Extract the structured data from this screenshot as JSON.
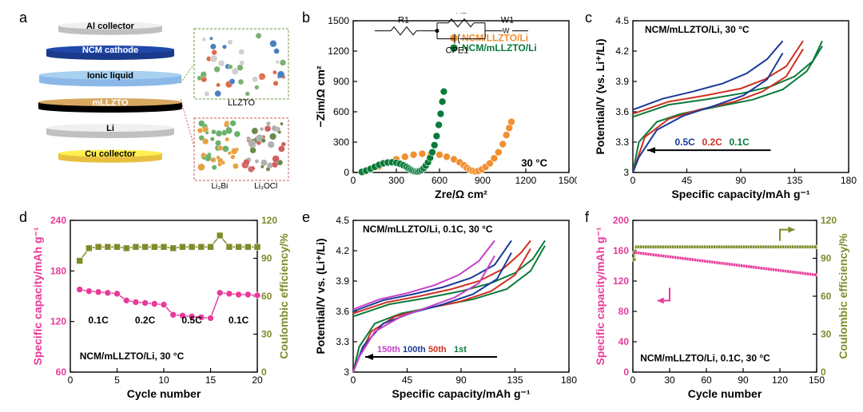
{
  "panels": {
    "a": {
      "label": "a"
    },
    "b": {
      "label": "b"
    },
    "c": {
      "label": "c"
    },
    "d": {
      "label": "d"
    },
    "e": {
      "label": "e"
    },
    "f": {
      "label": "f"
    }
  },
  "panel_a": {
    "layers": [
      {
        "label": "Al collector",
        "color": "#c0c0c0",
        "width": 130,
        "height": 18,
        "text_color": "#000000"
      },
      {
        "label": "NCM cathode",
        "color": "#1a3a8a",
        "width": 160,
        "height": 20,
        "text_color": "#ffffff"
      },
      {
        "label": "Ionic liquid",
        "color": "#8bb8e8",
        "width": 178,
        "height": 22,
        "text_color": "#000000"
      },
      {
        "label": "mLLZTO",
        "color": "#000000",
        "width": 180,
        "height": 20,
        "text_color": "#ffffff",
        "top_color": "#d8a860"
      },
      {
        "label": "Li",
        "color": "#c0c0c0",
        "width": 160,
        "height": 20,
        "text_color": "#000000"
      },
      {
        "label": "Cu collector",
        "color": "#e8c040",
        "width": 130,
        "height": 18,
        "text_color": "#000000"
      }
    ],
    "inset_labels": [
      "LLZTO",
      "Li₃Bi",
      "Li₃OCl"
    ],
    "inset_border_top": "#6a9a3a",
    "inset_border_bottom": "#c85a5a"
  },
  "panel_b": {
    "type": "scatter",
    "xlabel": "Zre/Ω cm²",
    "ylabel": "−Zim/Ω cm²",
    "xlim": [
      0,
      1500
    ],
    "xtick_step": 300,
    "ylim": [
      0,
      1500
    ],
    "ytick_step": 300,
    "annotation": "30 °C",
    "label_fontsize": 14,
    "tick_fontsize": 12,
    "circuit_labels": [
      "R1",
      "R2",
      "W1",
      "CPE1"
    ],
    "series": [
      {
        "name": "NCM/LLZTO/Li",
        "color": "#f09030",
        "marker_size": 4.5,
        "points": [
          [
            80,
            10
          ],
          [
            120,
            30
          ],
          [
            180,
            60
          ],
          [
            240,
            95
          ],
          [
            300,
            130
          ],
          [
            360,
            155
          ],
          [
            420,
            175
          ],
          [
            480,
            185
          ],
          [
            540,
            185
          ],
          [
            600,
            175
          ],
          [
            650,
            155
          ],
          [
            700,
            130
          ],
          [
            740,
            100
          ],
          [
            770,
            70
          ],
          [
            790,
            45
          ],
          [
            810,
            25
          ],
          [
            830,
            15
          ],
          [
            850,
            10
          ],
          [
            870,
            15
          ],
          [
            895,
            30
          ],
          [
            920,
            55
          ],
          [
            950,
            90
          ],
          [
            980,
            140
          ],
          [
            1010,
            200
          ],
          [
            1040,
            280
          ],
          [
            1065,
            370
          ],
          [
            1085,
            440
          ],
          [
            1100,
            500
          ]
        ]
      },
      {
        "name": "NCM/mLLZTO/Li",
        "color": "#0a7a3a",
        "marker_size": 4.5,
        "points": [
          [
            60,
            5
          ],
          [
            90,
            18
          ],
          [
            120,
            35
          ],
          [
            150,
            55
          ],
          [
            180,
            75
          ],
          [
            210,
            90
          ],
          [
            240,
            98
          ],
          [
            270,
            100
          ],
          [
            300,
            95
          ],
          [
            325,
            85
          ],
          [
            350,
            70
          ],
          [
            370,
            55
          ],
          [
            385,
            40
          ],
          [
            400,
            28
          ],
          [
            412,
            18
          ],
          [
            425,
            12
          ],
          [
            438,
            9
          ],
          [
            450,
            9
          ],
          [
            462,
            14
          ],
          [
            475,
            24
          ],
          [
            490,
            42
          ],
          [
            505,
            68
          ],
          [
            520,
            100
          ],
          [
            535,
            145
          ],
          [
            550,
            200
          ],
          [
            565,
            270
          ],
          [
            580,
            360
          ],
          [
            595,
            470
          ],
          [
            608,
            580
          ],
          [
            620,
            700
          ],
          [
            630,
            800
          ]
        ]
      }
    ]
  },
  "panel_c": {
    "type": "line",
    "xlabel": "Specific capacity/mAh g⁻¹",
    "ylabel": "Potential/V (vs. Li⁺/Li)",
    "title": "NCM/mLLZTO/Li, 30 °C",
    "xlim": [
      0,
      180
    ],
    "xtick_step": 45,
    "ylim": [
      3.0,
      4.5
    ],
    "ytick_step": 0.3,
    "rate_labels": [
      {
        "text": "0.5C",
        "color": "#1a3a9a"
      },
      {
        "text": "0.2C",
        "color": "#d03020"
      },
      {
        "text": "0.1C",
        "color": "#0a7a3a"
      }
    ],
    "series": [
      {
        "name": "0.1C-charge",
        "color": "#0a7a3a",
        "points": [
          [
            0,
            3.55
          ],
          [
            30,
            3.67
          ],
          [
            60,
            3.72
          ],
          [
            90,
            3.78
          ],
          [
            115,
            3.85
          ],
          [
            135,
            3.95
          ],
          [
            150,
            4.1
          ],
          [
            158,
            4.3
          ]
        ]
      },
      {
        "name": "0.1C-discharge",
        "color": "#0a7a3a",
        "points": [
          [
            158,
            4.25
          ],
          [
            145,
            4.0
          ],
          [
            125,
            3.82
          ],
          [
            100,
            3.72
          ],
          [
            70,
            3.65
          ],
          [
            40,
            3.58
          ],
          [
            20,
            3.5
          ],
          [
            5,
            3.3
          ],
          [
            0,
            3.0
          ]
        ]
      },
      {
        "name": "0.2C-charge",
        "color": "#d03020",
        "points": [
          [
            0,
            3.58
          ],
          [
            30,
            3.7
          ],
          [
            60,
            3.76
          ],
          [
            90,
            3.83
          ],
          [
            110,
            3.92
          ],
          [
            128,
            4.05
          ],
          [
            142,
            4.3
          ]
        ]
      },
      {
        "name": "0.2C-discharge",
        "color": "#d03020",
        "points": [
          [
            142,
            4.22
          ],
          [
            128,
            3.95
          ],
          [
            108,
            3.8
          ],
          [
            85,
            3.7
          ],
          [
            55,
            3.62
          ],
          [
            30,
            3.53
          ],
          [
            10,
            3.35
          ],
          [
            0,
            3.0
          ]
        ]
      },
      {
        "name": "0.5C-charge",
        "color": "#1a3a9a",
        "points": [
          [
            0,
            3.62
          ],
          [
            25,
            3.73
          ],
          [
            50,
            3.8
          ],
          [
            75,
            3.88
          ],
          [
            95,
            3.98
          ],
          [
            112,
            4.12
          ],
          [
            125,
            4.3
          ]
        ]
      },
      {
        "name": "0.5C-discharge",
        "color": "#1a3a9a",
        "points": [
          [
            125,
            4.18
          ],
          [
            112,
            3.92
          ],
          [
            92,
            3.76
          ],
          [
            68,
            3.66
          ],
          [
            42,
            3.56
          ],
          [
            20,
            3.42
          ],
          [
            5,
            3.15
          ],
          [
            0,
            3.0
          ]
        ]
      }
    ]
  },
  "panel_d": {
    "type": "scatter-dual",
    "xlabel": "Cycle number",
    "ylabel_left": "Specific capacity/mAh g⁻¹",
    "ylabel_right": "Coulombic efficiency/%",
    "annotation": "NCM/mLLZTO/Li, 30 °C",
    "xlim": [
      0,
      20
    ],
    "xtick_step": 5,
    "ylim_left": [
      60,
      240
    ],
    "ytick_left_step": 60,
    "ylim_right": [
      0,
      120
    ],
    "ytick_right_step": 30,
    "capacity_color": "#e83a9a",
    "efficiency_color": "#808a2a",
    "rate_labels": [
      {
        "text": "0.1C",
        "x": 3
      },
      {
        "text": "0.2C",
        "x": 8
      },
      {
        "text": "0.5C",
        "x": 13
      },
      {
        "text": "0.1C",
        "x": 18
      }
    ],
    "capacity_points": [
      [
        1,
        158
      ],
      [
        2,
        156
      ],
      [
        3,
        155
      ],
      [
        4,
        154
      ],
      [
        5,
        153
      ],
      [
        6,
        145
      ],
      [
        7,
        143
      ],
      [
        8,
        142
      ],
      [
        9,
        141
      ],
      [
        10,
        140
      ],
      [
        11,
        128
      ],
      [
        12,
        127
      ],
      [
        13,
        126
      ],
      [
        14,
        125
      ],
      [
        15,
        124
      ],
      [
        16,
        154
      ],
      [
        17,
        153
      ],
      [
        18,
        152
      ],
      [
        19,
        152
      ],
      [
        20,
        151
      ]
    ],
    "efficiency_points": [
      [
        1,
        88
      ],
      [
        2,
        98
      ],
      [
        3,
        99
      ],
      [
        4,
        99
      ],
      [
        5,
        99
      ],
      [
        6,
        98
      ],
      [
        7,
        99
      ],
      [
        8,
        99
      ],
      [
        9,
        99
      ],
      [
        10,
        99
      ],
      [
        11,
        98
      ],
      [
        12,
        99
      ],
      [
        13,
        99
      ],
      [
        14,
        99
      ],
      [
        15,
        99
      ],
      [
        16,
        108
      ],
      [
        17,
        99
      ],
      [
        18,
        99
      ],
      [
        19,
        99
      ],
      [
        20,
        99
      ]
    ]
  },
  "panel_e": {
    "type": "line",
    "xlabel": "Specific capacity/mAh g⁻¹",
    "ylabel": "Potential/V vs. (Li⁺/Li)",
    "title": "NCM/mLLZTO/Li, 0.1C, 30 °C",
    "xlim": [
      0,
      180
    ],
    "xtick_step": 45,
    "ylim": [
      3.0,
      4.5
    ],
    "ytick_step": 0.3,
    "cycle_labels": [
      {
        "text": "150th",
        "color": "#c840c8"
      },
      {
        "text": "100th",
        "color": "#1a3a9a"
      },
      {
        "text": "50th",
        "color": "#d03020"
      },
      {
        "text": "1st",
        "color": "#0a7a3a"
      }
    ],
    "series": [
      {
        "color": "#0a7a3a",
        "points_charge": [
          [
            0,
            3.55
          ],
          [
            30,
            3.67
          ],
          [
            60,
            3.73
          ],
          [
            90,
            3.8
          ],
          [
            115,
            3.88
          ],
          [
            135,
            3.98
          ],
          [
            150,
            4.12
          ],
          [
            160,
            4.3
          ]
        ],
        "points_discharge": [
          [
            160,
            4.25
          ],
          [
            148,
            4.0
          ],
          [
            128,
            3.82
          ],
          [
            100,
            3.72
          ],
          [
            70,
            3.65
          ],
          [
            40,
            3.58
          ],
          [
            18,
            3.48
          ],
          [
            5,
            3.25
          ],
          [
            0,
            3.0
          ]
        ]
      },
      {
        "color": "#d03020",
        "points_charge": [
          [
            0,
            3.58
          ],
          [
            28,
            3.69
          ],
          [
            55,
            3.75
          ],
          [
            82,
            3.82
          ],
          [
            105,
            3.9
          ],
          [
            125,
            4.02
          ],
          [
            140,
            4.18
          ],
          [
            148,
            4.3
          ]
        ],
        "points_discharge": [
          [
            148,
            4.22
          ],
          [
            135,
            3.96
          ],
          [
            115,
            3.8
          ],
          [
            90,
            3.7
          ],
          [
            62,
            3.63
          ],
          [
            35,
            3.55
          ],
          [
            15,
            3.4
          ],
          [
            3,
            3.1
          ],
          [
            0,
            3.0
          ]
        ]
      },
      {
        "color": "#1a3a9a",
        "points_charge": [
          [
            0,
            3.6
          ],
          [
            25,
            3.71
          ],
          [
            50,
            3.77
          ],
          [
            75,
            3.84
          ],
          [
            98,
            3.93
          ],
          [
            118,
            4.06
          ],
          [
            132,
            4.3
          ]
        ],
        "points_discharge": [
          [
            132,
            4.18
          ],
          [
            120,
            3.92
          ],
          [
            100,
            3.77
          ],
          [
            75,
            3.67
          ],
          [
            50,
            3.59
          ],
          [
            25,
            3.48
          ],
          [
            8,
            3.25
          ],
          [
            0,
            3.0
          ]
        ]
      },
      {
        "color": "#c840c8",
        "points_charge": [
          [
            0,
            3.62
          ],
          [
            22,
            3.72
          ],
          [
            45,
            3.78
          ],
          [
            68,
            3.86
          ],
          [
            88,
            3.96
          ],
          [
            105,
            4.1
          ],
          [
            118,
            4.3
          ]
        ],
        "points_discharge": [
          [
            118,
            4.15
          ],
          [
            105,
            3.88
          ],
          [
            85,
            3.74
          ],
          [
            62,
            3.64
          ],
          [
            40,
            3.55
          ],
          [
            18,
            3.4
          ],
          [
            5,
            3.15
          ],
          [
            0,
            3.0
          ]
        ]
      }
    ]
  },
  "panel_f": {
    "type": "scatter-dual",
    "xlabel": "Cycle number",
    "ylabel_left": "Specific capacity/mAh g⁻¹",
    "ylabel_right": "Coulombic efficiency/%",
    "annotation": "NCM/mLLZTO/Li, 0.1C, 30 °C",
    "xlim": [
      0,
      150
    ],
    "xtick_step": 30,
    "ylim_left": [
      0,
      200
    ],
    "ytick_left_step": 40,
    "ylim_right": [
      0,
      120
    ],
    "ytick_right_step": 30,
    "capacity_color": "#e83a9a",
    "efficiency_color": "#808a2a",
    "capacity_start": 158,
    "capacity_end": 128,
    "efficiency_value": 99
  }
}
